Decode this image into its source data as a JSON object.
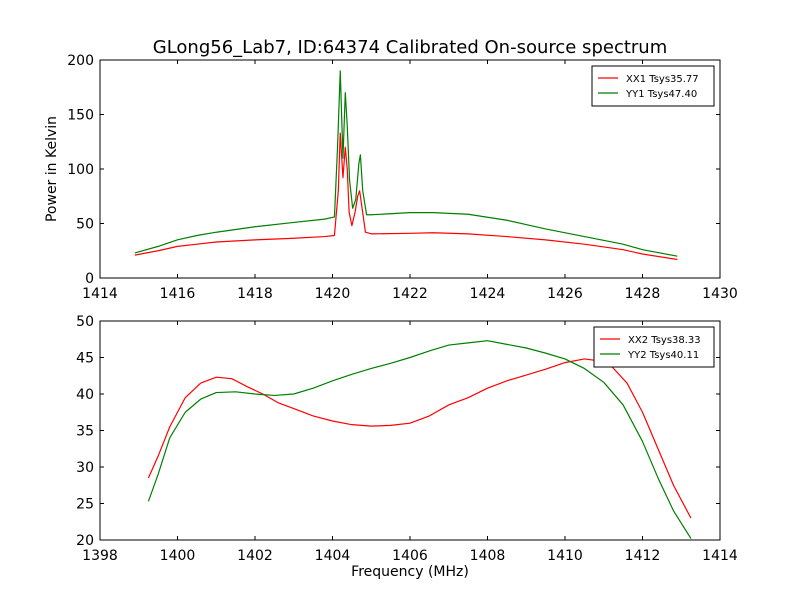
{
  "figure_title": "GLong56_Lab7, ID:64374 Calibrated On-source spectrum",
  "colors": {
    "xx": "#ff0000",
    "yy": "#007f00"
  },
  "chart_data": [
    {
      "type": "line",
      "ylabel": "Power in Kelvin",
      "xlabel": "",
      "xlim": [
        1414,
        1430
      ],
      "ylim": [
        0,
        200
      ],
      "xticks": [
        1414,
        1416,
        1418,
        1420,
        1422,
        1424,
        1426,
        1428,
        1430
      ],
      "yticks": [
        0,
        50,
        100,
        150,
        200
      ],
      "grid": false,
      "legend_position": "top-right",
      "series": [
        {
          "name": "XX1 Tsys35.77",
          "color": "#ff0000",
          "x": [
            1414.9,
            1415.5,
            1416.0,
            1416.5,
            1417.0,
            1418.0,
            1419.0,
            1419.8,
            1420.05,
            1420.15,
            1420.2,
            1420.27,
            1420.33,
            1420.38,
            1420.43,
            1420.5,
            1420.58,
            1420.65,
            1420.7,
            1420.76,
            1420.85,
            1421.0,
            1422.0,
            1422.6,
            1423.5,
            1424.5,
            1425.5,
            1426.5,
            1427.5,
            1428.0,
            1428.9
          ],
          "y": [
            21,
            25,
            29,
            31,
            33,
            35,
            36.5,
            38,
            39,
            80,
            133,
            92,
            120,
            100,
            60,
            48,
            60,
            75,
            80,
            65,
            42,
            40.5,
            41,
            41.5,
            40.5,
            38,
            35,
            31,
            26,
            22,
            17
          ]
        },
        {
          "name": "YY1 Tsys47.40",
          "color": "#007f00",
          "x": [
            1414.9,
            1415.5,
            1416.0,
            1416.5,
            1417.0,
            1418.0,
            1419.0,
            1419.8,
            1420.05,
            1420.13,
            1420.2,
            1420.27,
            1420.33,
            1420.38,
            1420.44,
            1420.52,
            1420.6,
            1420.68,
            1420.72,
            1420.78,
            1420.88,
            1421.0,
            1422.0,
            1422.6,
            1423.5,
            1424.5,
            1425.5,
            1426.5,
            1427.5,
            1428.0,
            1428.9
          ],
          "y": [
            23,
            29,
            35,
            39,
            42,
            47,
            51,
            54,
            56,
            120,
            190,
            110,
            170,
            140,
            90,
            64,
            72,
            105,
            113,
            80,
            58,
            58,
            60,
            60,
            58.5,
            53,
            45,
            38,
            31,
            26,
            20
          ]
        }
      ]
    },
    {
      "type": "line",
      "ylabel": "",
      "xlabel": "Frequency (MHz)",
      "xlim": [
        1398,
        1414
      ],
      "ylim": [
        20,
        50
      ],
      "xticks": [
        1398,
        1400,
        1402,
        1404,
        1406,
        1408,
        1410,
        1412,
        1414
      ],
      "yticks": [
        20,
        25,
        30,
        35,
        40,
        45,
        50
      ],
      "grid": false,
      "legend_position": "top-right",
      "series": [
        {
          "name": "XX2 Tsys38.33",
          "color": "#ff0000",
          "x": [
            1399.25,
            1399.5,
            1399.8,
            1400.2,
            1400.6,
            1401.0,
            1401.4,
            1401.8,
            1402.2,
            1402.6,
            1403.0,
            1403.5,
            1404.0,
            1404.5,
            1405.0,
            1405.5,
            1406.0,
            1406.5,
            1407.0,
            1407.5,
            1408.0,
            1408.5,
            1409.0,
            1409.5,
            1410.0,
            1410.5,
            1410.8,
            1411.2,
            1411.6,
            1412.0,
            1412.4,
            1412.8,
            1413.25
          ],
          "y": [
            28.5,
            31.5,
            35.5,
            39.5,
            41.5,
            42.3,
            42.1,
            41.0,
            40.0,
            38.8,
            38.0,
            37.0,
            36.3,
            35.8,
            35.6,
            35.7,
            36.0,
            37.0,
            38.5,
            39.5,
            40.8,
            41.8,
            42.6,
            43.4,
            44.3,
            44.8,
            44.6,
            43.8,
            41.5,
            37.5,
            32.5,
            27.5,
            23.0
          ]
        },
        {
          "name": "YY2 Tsys40.11",
          "color": "#007f00",
          "x": [
            1399.25,
            1399.5,
            1399.8,
            1400.2,
            1400.6,
            1401.0,
            1401.5,
            1402.0,
            1402.5,
            1403.0,
            1403.5,
            1404.0,
            1404.5,
            1405.0,
            1405.5,
            1406.0,
            1406.5,
            1407.0,
            1407.5,
            1408.0,
            1408.5,
            1409.0,
            1409.5,
            1410.0,
            1410.5,
            1411.0,
            1411.5,
            1412.0,
            1412.4,
            1412.8,
            1413.25
          ],
          "y": [
            25.3,
            29.0,
            34.0,
            37.5,
            39.3,
            40.2,
            40.3,
            40.0,
            39.8,
            40.0,
            40.8,
            41.8,
            42.7,
            43.5,
            44.2,
            45.0,
            45.9,
            46.7,
            47.0,
            47.3,
            46.8,
            46.3,
            45.6,
            44.8,
            43.5,
            41.6,
            38.5,
            33.5,
            28.5,
            24.0,
            20.2
          ]
        }
      ]
    }
  ]
}
